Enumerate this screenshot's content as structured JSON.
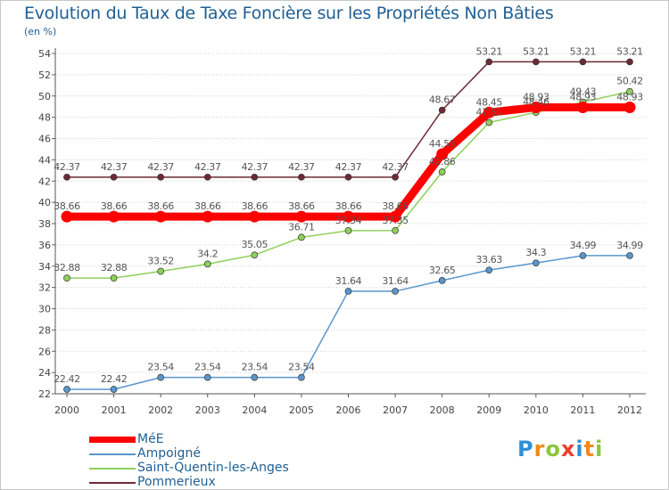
{
  "header": {
    "title": "Evolution du Taux de Taxe Foncière sur les Propriétés Non Bâties",
    "unit": "(en %)"
  },
  "logo": {
    "letters": [
      "P",
      "r",
      "o",
      "x",
      "i",
      "t",
      "i"
    ],
    "colors": [
      "#2e8fd6",
      "#f08a1a",
      "#8cc63f",
      "#e8412c",
      "#2e8fd6",
      "#f08a1a",
      "#8cc63f"
    ]
  },
  "chart_data": {
    "type": "line",
    "title": "Evolution du Taux de Taxe Foncière sur les Propriétés Non Bâties",
    "ylabel": "(en %)",
    "xlabel": "",
    "x": [
      "2000",
      "2001",
      "2002",
      "2003",
      "2004",
      "2005",
      "2006",
      "2007",
      "2008",
      "2009",
      "2010",
      "2011",
      "2012"
    ],
    "ylim": [
      22,
      54
    ],
    "yticks": [
      "22",
      "24",
      "26",
      "28",
      "30",
      "32",
      "34",
      "36",
      "38",
      "40",
      "42",
      "44",
      "46",
      "48",
      "50",
      "52",
      "54"
    ],
    "grid": "horizontal",
    "legend_position": "bottom-left",
    "series": [
      {
        "name": "Pommerieux",
        "color": "#6e2a34",
        "values": [
          42.37,
          42.37,
          42.37,
          42.37,
          42.37,
          42.37,
          42.37,
          42.37,
          48.67,
          53.21,
          53.21,
          53.21,
          53.21
        ],
        "labels": [
          "42.37",
          "42.37",
          "42.37",
          "42.37",
          "42.37",
          "42.37",
          "42.37",
          "42.37",
          "48.67",
          "53.21",
          "53.21",
          "53.21",
          "53.21"
        ]
      },
      {
        "name": "Saint-Quentin-les-Anges",
        "color": "#8fd05a",
        "values": [
          32.88,
          32.88,
          33.52,
          34.2,
          35.05,
          36.71,
          37.34,
          37.35,
          42.86,
          47.51,
          48.46,
          49.43,
          50.42
        ],
        "labels": [
          "32.88",
          "32.88",
          "33.52",
          "34.2",
          "35.05",
          "36.71",
          "37.34",
          "37.35",
          "42.86",
          "47.51",
          "48.46",
          "49.43",
          "50.42"
        ]
      },
      {
        "name": "Ampoigné",
        "color": "#5a96cc",
        "values": [
          22.42,
          22.42,
          23.54,
          23.54,
          23.54,
          23.54,
          31.64,
          31.64,
          32.65,
          33.63,
          34.3,
          34.99,
          34.99
        ],
        "labels": [
          "22.42",
          "22.42",
          "23.54",
          "23.54",
          "23.54",
          "23.54",
          "31.64",
          "31.64",
          "32.65",
          "33.63",
          "34.3",
          "34.99",
          "34.99"
        ]
      },
      {
        "name": "MéE",
        "color": "#ff0000",
        "values": [
          38.66,
          38.66,
          38.66,
          38.66,
          38.66,
          38.66,
          38.66,
          38.66,
          44.53,
          48.45,
          48.93,
          48.93,
          48.93
        ],
        "labels": [
          "38.66",
          "38.66",
          "38.66",
          "38.66",
          "38.66",
          "38.66",
          "38.66",
          "38.66",
          "44.53",
          "48.45",
          "48.93",
          "48.93",
          "48.93"
        ]
      }
    ],
    "legend_order": [
      "MéE",
      "Ampoigné",
      "Saint-Quentin-les-Anges",
      "Pommerieux"
    ]
  }
}
